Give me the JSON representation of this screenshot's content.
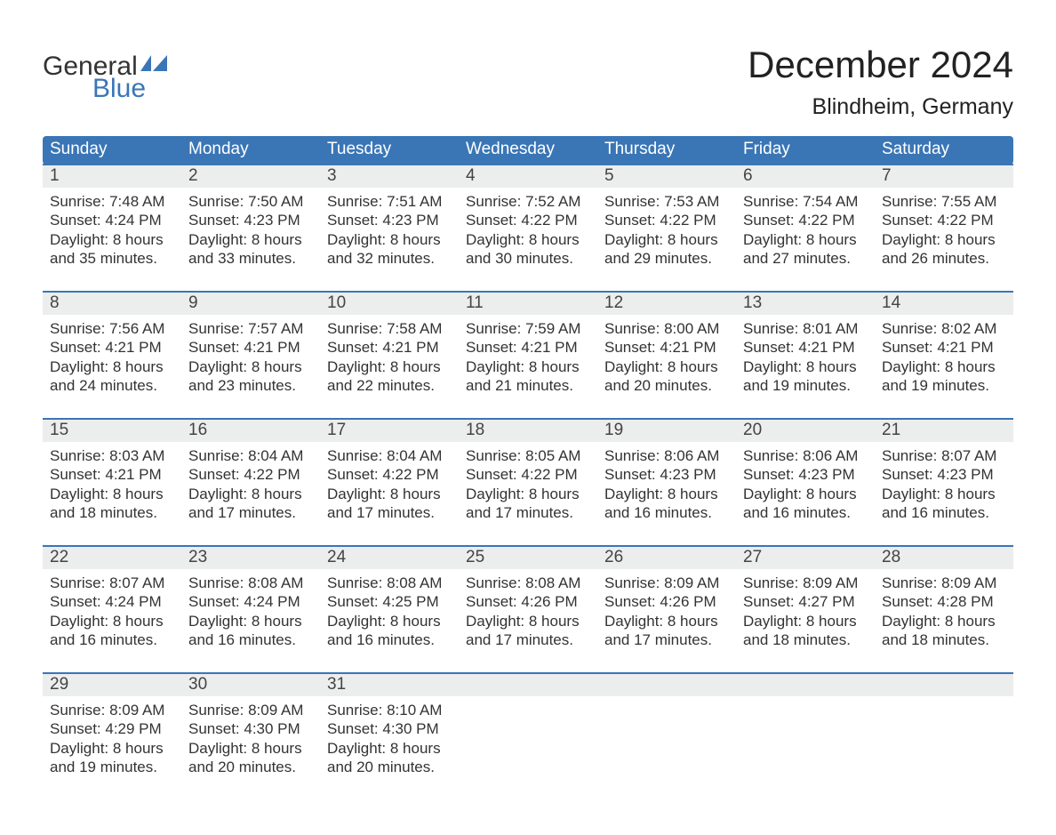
{
  "brand": {
    "part1": "General",
    "part2": "Blue",
    "flag_color": "#3a76b6",
    "text_dark": "#333333"
  },
  "title": "December 2024",
  "location": "Blindheim, Germany",
  "theme": {
    "header_bg": "#3a76b6",
    "header_text": "#ffffff",
    "row_rule": "#3a76b6",
    "daynum_bg": "#eceded",
    "body_text": "#333333",
    "page_bg": "#ffffff"
  },
  "day_headers": [
    "Sunday",
    "Monday",
    "Tuesday",
    "Wednesday",
    "Thursday",
    "Friday",
    "Saturday"
  ],
  "weeks": [
    [
      {
        "n": "1",
        "sunrise": "7:48 AM",
        "sunset": "4:24 PM",
        "daylight": "8 hours and 35 minutes."
      },
      {
        "n": "2",
        "sunrise": "7:50 AM",
        "sunset": "4:23 PM",
        "daylight": "8 hours and 33 minutes."
      },
      {
        "n": "3",
        "sunrise": "7:51 AM",
        "sunset": "4:23 PM",
        "daylight": "8 hours and 32 minutes."
      },
      {
        "n": "4",
        "sunrise": "7:52 AM",
        "sunset": "4:22 PM",
        "daylight": "8 hours and 30 minutes."
      },
      {
        "n": "5",
        "sunrise": "7:53 AM",
        "sunset": "4:22 PM",
        "daylight": "8 hours and 29 minutes."
      },
      {
        "n": "6",
        "sunrise": "7:54 AM",
        "sunset": "4:22 PM",
        "daylight": "8 hours and 27 minutes."
      },
      {
        "n": "7",
        "sunrise": "7:55 AM",
        "sunset": "4:22 PM",
        "daylight": "8 hours and 26 minutes."
      }
    ],
    [
      {
        "n": "8",
        "sunrise": "7:56 AM",
        "sunset": "4:21 PM",
        "daylight": "8 hours and 24 minutes."
      },
      {
        "n": "9",
        "sunrise": "7:57 AM",
        "sunset": "4:21 PM",
        "daylight": "8 hours and 23 minutes."
      },
      {
        "n": "10",
        "sunrise": "7:58 AM",
        "sunset": "4:21 PM",
        "daylight": "8 hours and 22 minutes."
      },
      {
        "n": "11",
        "sunrise": "7:59 AM",
        "sunset": "4:21 PM",
        "daylight": "8 hours and 21 minutes."
      },
      {
        "n": "12",
        "sunrise": "8:00 AM",
        "sunset": "4:21 PM",
        "daylight": "8 hours and 20 minutes."
      },
      {
        "n": "13",
        "sunrise": "8:01 AM",
        "sunset": "4:21 PM",
        "daylight": "8 hours and 19 minutes."
      },
      {
        "n": "14",
        "sunrise": "8:02 AM",
        "sunset": "4:21 PM",
        "daylight": "8 hours and 19 minutes."
      }
    ],
    [
      {
        "n": "15",
        "sunrise": "8:03 AM",
        "sunset": "4:21 PM",
        "daylight": "8 hours and 18 minutes."
      },
      {
        "n": "16",
        "sunrise": "8:04 AM",
        "sunset": "4:22 PM",
        "daylight": "8 hours and 17 minutes."
      },
      {
        "n": "17",
        "sunrise": "8:04 AM",
        "sunset": "4:22 PM",
        "daylight": "8 hours and 17 minutes."
      },
      {
        "n": "18",
        "sunrise": "8:05 AM",
        "sunset": "4:22 PM",
        "daylight": "8 hours and 17 minutes."
      },
      {
        "n": "19",
        "sunrise": "8:06 AM",
        "sunset": "4:23 PM",
        "daylight": "8 hours and 16 minutes."
      },
      {
        "n": "20",
        "sunrise": "8:06 AM",
        "sunset": "4:23 PM",
        "daylight": "8 hours and 16 minutes."
      },
      {
        "n": "21",
        "sunrise": "8:07 AM",
        "sunset": "4:23 PM",
        "daylight": "8 hours and 16 minutes."
      }
    ],
    [
      {
        "n": "22",
        "sunrise": "8:07 AM",
        "sunset": "4:24 PM",
        "daylight": "8 hours and 16 minutes."
      },
      {
        "n": "23",
        "sunrise": "8:08 AM",
        "sunset": "4:24 PM",
        "daylight": "8 hours and 16 minutes."
      },
      {
        "n": "24",
        "sunrise": "8:08 AM",
        "sunset": "4:25 PM",
        "daylight": "8 hours and 16 minutes."
      },
      {
        "n": "25",
        "sunrise": "8:08 AM",
        "sunset": "4:26 PM",
        "daylight": "8 hours and 17 minutes."
      },
      {
        "n": "26",
        "sunrise": "8:09 AM",
        "sunset": "4:26 PM",
        "daylight": "8 hours and 17 minutes."
      },
      {
        "n": "27",
        "sunrise": "8:09 AM",
        "sunset": "4:27 PM",
        "daylight": "8 hours and 18 minutes."
      },
      {
        "n": "28",
        "sunrise": "8:09 AM",
        "sunset": "4:28 PM",
        "daylight": "8 hours and 18 minutes."
      }
    ],
    [
      {
        "n": "29",
        "sunrise": "8:09 AM",
        "sunset": "4:29 PM",
        "daylight": "8 hours and 19 minutes."
      },
      {
        "n": "30",
        "sunrise": "8:09 AM",
        "sunset": "4:30 PM",
        "daylight": "8 hours and 20 minutes."
      },
      {
        "n": "31",
        "sunrise": "8:10 AM",
        "sunset": "4:30 PM",
        "daylight": "8 hours and 20 minutes."
      },
      null,
      null,
      null,
      null
    ]
  ],
  "labels": {
    "sunrise": "Sunrise:",
    "sunset": "Sunset:",
    "daylight": "Daylight:"
  }
}
